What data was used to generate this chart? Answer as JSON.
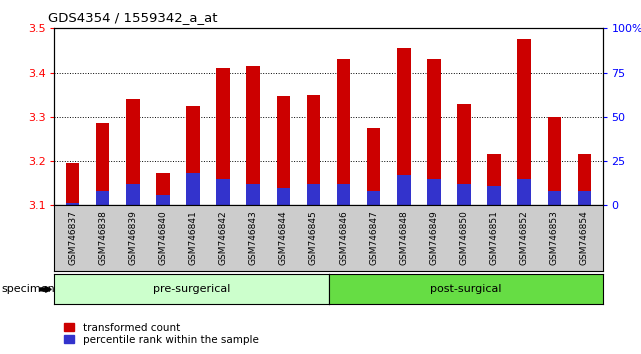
{
  "title": "GDS4354 / 1559342_a_at",
  "samples": [
    "GSM746837",
    "GSM746838",
    "GSM746839",
    "GSM746840",
    "GSM746841",
    "GSM746842",
    "GSM746843",
    "GSM746844",
    "GSM746845",
    "GSM746846",
    "GSM746847",
    "GSM746848",
    "GSM746849",
    "GSM746850",
    "GSM746851",
    "GSM746852",
    "GSM746853",
    "GSM746854"
  ],
  "red_values": [
    3.195,
    3.287,
    3.34,
    3.172,
    3.325,
    3.41,
    3.415,
    3.348,
    3.35,
    3.43,
    3.274,
    3.455,
    3.43,
    3.33,
    3.215,
    3.475,
    3.3,
    3.215
  ],
  "blue_values_pct": [
    1.5,
    8.0,
    12.0,
    6.0,
    18.0,
    15.0,
    12.0,
    10.0,
    12.0,
    12.0,
    8.0,
    17.0,
    15.0,
    12.0,
    11.0,
    15.0,
    8.0,
    8.0
  ],
  "pre_surgical_count": 9,
  "post_surgical_count": 9,
  "ylim_left": [
    3.1,
    3.5
  ],
  "ylim_right": [
    0,
    100
  ],
  "bar_color_red": "#cc0000",
  "bar_color_blue": "#3333cc",
  "pre_color": "#ccffcc",
  "post_color": "#66dd44",
  "xtick_bg": "#cccccc",
  "y_ticks_left": [
    3.1,
    3.2,
    3.3,
    3.4,
    3.5
  ],
  "y_ticks_right": [
    0,
    25,
    50,
    75,
    100
  ],
  "legend_red": "transformed count",
  "legend_blue": "percentile rank within the sample",
  "specimen_label": "specimen",
  "pre_label": "pre-surgerical",
  "post_label": "post-surgical"
}
